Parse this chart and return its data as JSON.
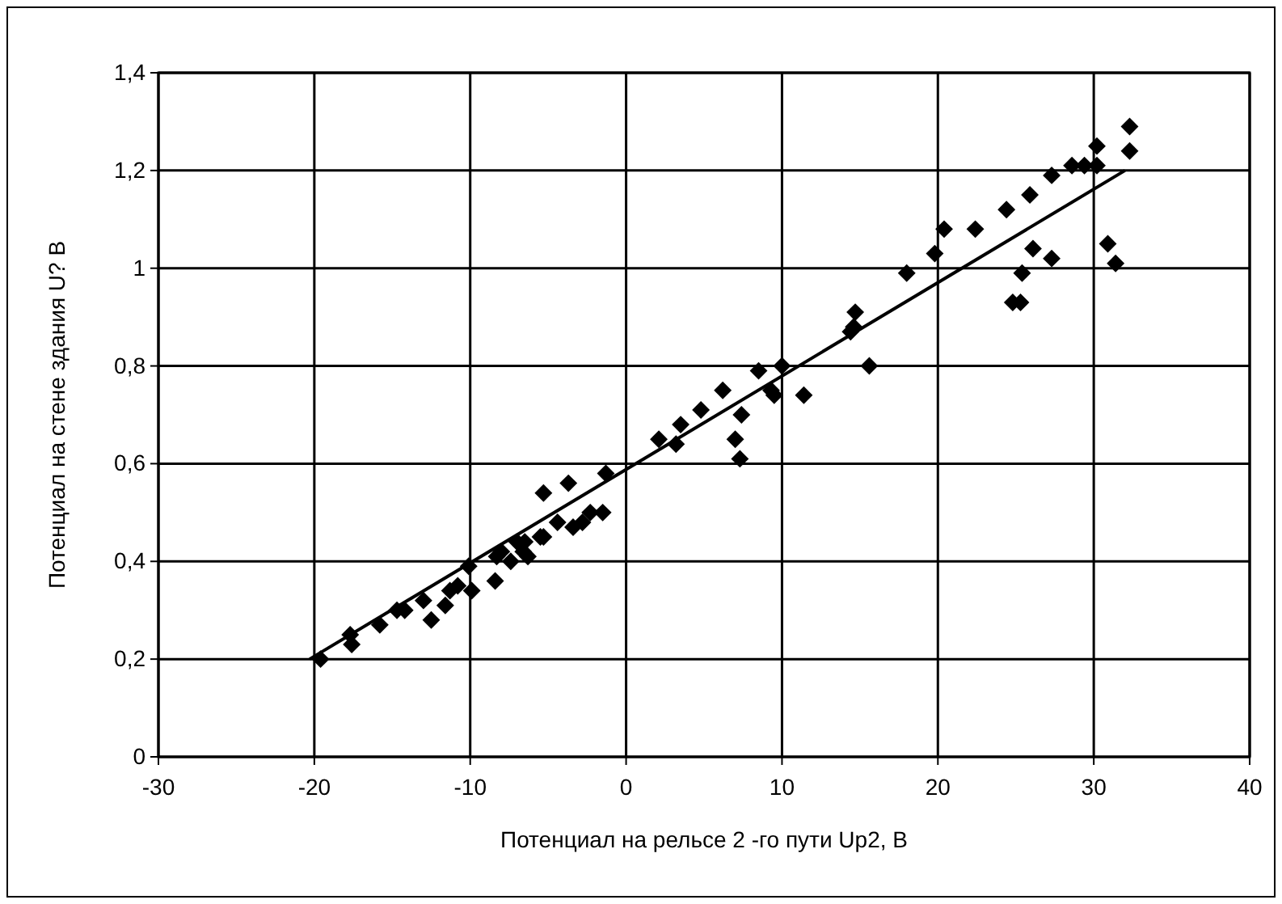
{
  "chart_data": {
    "type": "scatter",
    "xlabel": "Потенциал на рельсе 2 -го пути Up2, В",
    "ylabel": "Потенциал на стене здания U? В",
    "xlim": [
      -30,
      40
    ],
    "xticks": [
      -30,
      -20,
      -10,
      0,
      10,
      20,
      30,
      40
    ],
    "ylim": [
      0,
      1.4
    ],
    "yticks": [
      0,
      {
        "value": 0.2,
        "label": "0,2"
      },
      {
        "value": 0.4,
        "label": "0,4"
      },
      {
        "value": 0.6,
        "label": "0,6"
      },
      {
        "value": 0.8,
        "label": "0,8"
      },
      1,
      {
        "value": 1.2,
        "label": "1,2"
      },
      {
        "value": 1.4,
        "label": "1,4"
      }
    ],
    "grid": true,
    "series": [
      {
        "color": "#000000",
        "marker": "diamond",
        "x": [
          -19.6,
          -17.7,
          -17.6,
          -15.8,
          -14.7,
          -14.2,
          -13.0,
          -12.5,
          -11.6,
          -11.3,
          -10.8,
          -10.1,
          -9.9,
          -8.4,
          -8.3,
          -8.0,
          -7.4,
          -7.0,
          -6.6,
          -6.3,
          -6.5,
          -5.5,
          -5.3,
          -5.3,
          -4.4,
          -3.7,
          -3.4,
          -2.8,
          -2.3,
          -1.5,
          -1.3,
          2.1,
          3.2,
          3.5,
          4.8,
          6.2,
          7.0,
          7.3,
          7.4,
          8.5,
          9.3,
          9.5,
          10.0,
          11.4,
          14.4,
          14.6,
          14.7,
          15.6,
          18.0,
          19.8,
          20.4,
          22.4,
          24.4,
          24.8,
          25.3,
          25.4,
          25.9,
          26.1,
          27.3,
          27.3,
          28.6,
          29.4,
          30.2,
          30.2,
          30.9,
          31.4,
          32.3,
          32.3
        ],
        "values": [
          0.2,
          0.25,
          0.23,
          0.27,
          0.3,
          0.3,
          0.32,
          0.28,
          0.31,
          0.34,
          0.35,
          0.39,
          0.34,
          0.36,
          0.41,
          0.42,
          0.4,
          0.44,
          0.42,
          0.41,
          0.44,
          0.45,
          0.45,
          0.54,
          0.48,
          0.56,
          0.47,
          0.48,
          0.5,
          0.5,
          0.58,
          0.65,
          0.64,
          0.68,
          0.71,
          0.75,
          0.65,
          0.61,
          0.7,
          0.79,
          0.75,
          0.74,
          0.8,
          0.74,
          0.87,
          0.88,
          0.91,
          0.8,
          0.99,
          1.03,
          1.08,
          1.08,
          1.12,
          0.93,
          0.93,
          0.99,
          1.15,
          1.04,
          1.19,
          1.02,
          1.21,
          1.21,
          1.21,
          1.25,
          1.05,
          1.01,
          1.29,
          1.24
        ]
      },
      {
        "type": "line",
        "color": "#000000",
        "line_style": "solid",
        "x": [
          -20.3,
          32
        ],
        "values": [
          0.2,
          1.2
        ]
      }
    ]
  }
}
